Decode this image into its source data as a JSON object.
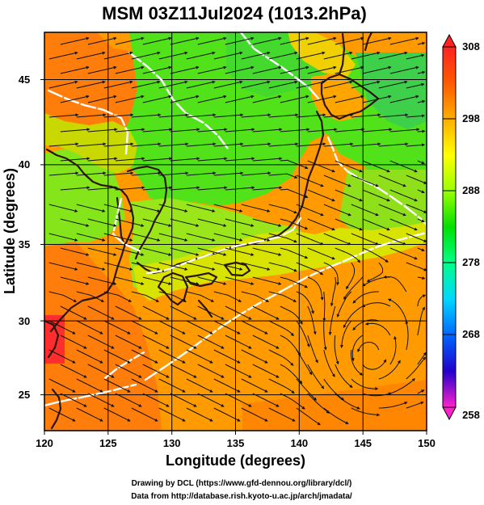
{
  "title": "MSM 03Z11Jul2024 (1013.2hPa)",
  "chart_data": {
    "type": "heatmap",
    "title": "MSM 03Z11Jul2024 (1013.2hPa)",
    "xlabel": "Longitude (degrees)",
    "ylabel": "Latitude  (degrees)",
    "xlim": [
      120,
      150
    ],
    "ylim": [
      22.4,
      47.6
    ],
    "x_ticks": [
      "120",
      "125",
      "130",
      "135",
      "140",
      "145",
      "150"
    ],
    "y_ticks": [
      "25",
      "30",
      "35",
      "40",
      "45"
    ],
    "colorbar": {
      "min": 258,
      "max": 308,
      "tick_labels": [
        "308",
        "298",
        "288",
        "278",
        "268",
        "258"
      ],
      "colors": [
        "#ff22cc",
        "#2200cc",
        "#0066ff",
        "#00d7ff",
        "#00ff8a",
        "#00e000",
        "#99ff00",
        "#ffff00",
        "#ffae00",
        "#ff5a00",
        "#ff2222"
      ]
    },
    "grid": true,
    "overlays": [
      "streamlines",
      "white contour",
      "coastlines"
    ],
    "typhoon_center_approx": {
      "lon": 145.5,
      "lat": 27.0
    }
  },
  "credits": {
    "line1": "Drawing by DCL (https://www.gfd-dennou.org/library/dcl/)",
    "line2": "Data from http://database.rish.kyoto-u.ac.jp/arch/jmadata/"
  },
  "colors": {
    "plot_outline": "#000000",
    "contour": "#ffffff",
    "stream": "#111111",
    "land_shadow": "#2c1508"
  }
}
